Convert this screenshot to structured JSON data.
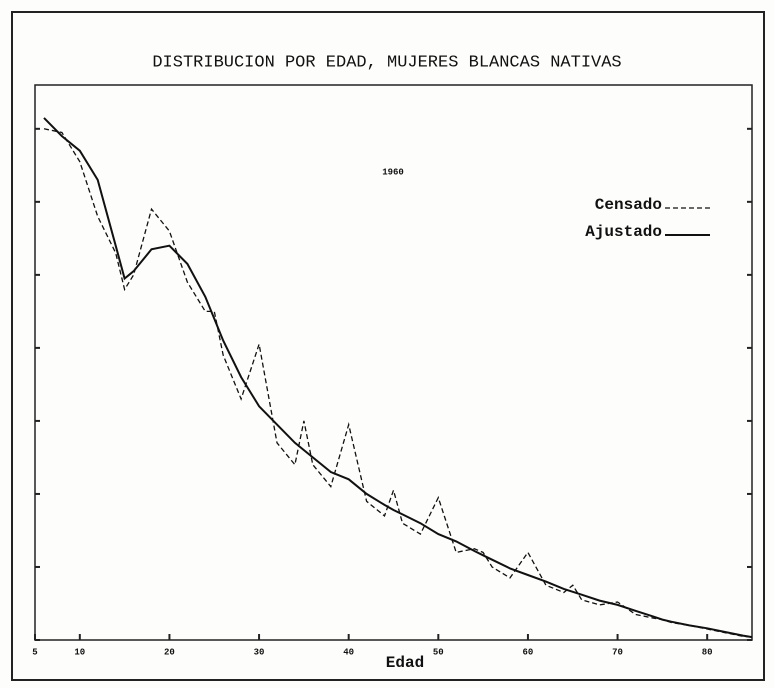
{
  "chart_data": {
    "type": "line",
    "title": "DISTRIBUCION POR EDAD, MUJERES BLANCAS NATIVAS",
    "annotation": "1960",
    "x_label": "Edad",
    "x": [
      6,
      8,
      10,
      12,
      14,
      15,
      16,
      18,
      20,
      22,
      24,
      25,
      26,
      28,
      30,
      32,
      34,
      35,
      36,
      38,
      40,
      42,
      44,
      45,
      46,
      48,
      50,
      52,
      54,
      55,
      56,
      58,
      60,
      62,
      64,
      65,
      66,
      68,
      70,
      72,
      74,
      75,
      76,
      78,
      80,
      82,
      84,
      85
    ],
    "series": [
      {
        "name": "Censado",
        "color": "#111111",
        "dashed": true,
        "values": [
          7.0,
          6.95,
          6.55,
          5.8,
          5.3,
          4.8,
          5.0,
          5.9,
          5.6,
          4.9,
          4.5,
          4.5,
          3.9,
          3.3,
          4.05,
          2.7,
          2.4,
          3.0,
          2.4,
          2.1,
          2.95,
          1.9,
          1.7,
          2.05,
          1.6,
          1.45,
          1.95,
          1.2,
          1.25,
          1.2,
          1.0,
          0.85,
          1.2,
          0.75,
          0.65,
          0.75,
          0.55,
          0.48,
          0.52,
          0.35,
          0.3,
          0.28,
          0.24,
          0.2,
          0.15,
          0.1,
          0.05,
          0.04
        ]
      },
      {
        "name": "Ajustado",
        "color": "#111111",
        "dashed": false,
        "values": [
          7.15,
          6.9,
          6.7,
          6.3,
          5.4,
          4.95,
          5.05,
          5.35,
          5.4,
          5.15,
          4.7,
          4.4,
          4.1,
          3.6,
          3.2,
          2.95,
          2.7,
          2.6,
          2.5,
          2.3,
          2.2,
          2.0,
          1.85,
          1.78,
          1.72,
          1.6,
          1.45,
          1.35,
          1.22,
          1.16,
          1.1,
          0.98,
          0.89,
          0.8,
          0.7,
          0.66,
          0.62,
          0.54,
          0.48,
          0.4,
          0.32,
          0.28,
          0.25,
          0.2,
          0.16,
          0.11,
          0.06,
          0.04
        ]
      }
    ],
    "xlim": [
      5,
      85
    ],
    "xticks": [
      5,
      10,
      20,
      30,
      40,
      50,
      60,
      70,
      80
    ],
    "ylim": [
      0,
      7.6
    ],
    "yticks": [
      0,
      1,
      2,
      3,
      4,
      5,
      6,
      7
    ],
    "legend": "upper right",
    "grid": false
  }
}
